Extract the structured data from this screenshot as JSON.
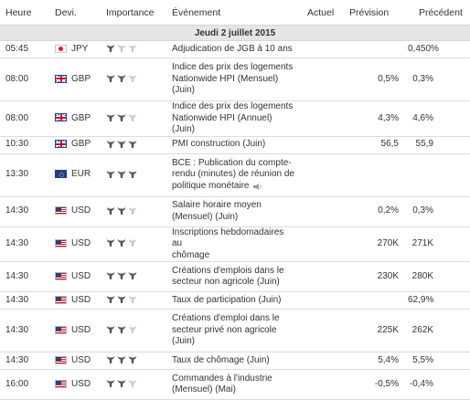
{
  "headers": {
    "time": "Heure",
    "currency": "Devi.",
    "importance": "Importance",
    "event": "Événement",
    "actual": "Actuel",
    "forecast": "Prévision",
    "previous": "Précédent"
  },
  "date_row": "Jeudi 2 juillet 2015",
  "colors": {
    "bull_full": "#555555",
    "bull_empty": "#c9c9c9",
    "date_bg": "#e6e6e6"
  },
  "events": [
    {
      "time": "05:45",
      "flag": "jpy",
      "currency": "JPY",
      "importance": 1,
      "event_lines": [
        "Adjudication de JGB à 10 ans"
      ],
      "actual": "",
      "forecast": "",
      "previous": "0,450%"
    },
    {
      "time": "08:00",
      "flag": "gbp",
      "currency": "GBP",
      "importance": 2,
      "event_lines": [
        "Indice des prix des logements",
        "Nationwide HPI (Mensuel)",
        "(Juin)"
      ],
      "actual": "",
      "forecast": "0,5%",
      "previous": "0,3%"
    },
    {
      "time": "08:00",
      "flag": "gbp",
      "currency": "GBP",
      "importance": 2,
      "event_lines": [
        "Indice des prix des logements",
        "Nationwide HPI (Annuel) (Juin)"
      ],
      "actual": "",
      "forecast": "4,3%",
      "previous": "4,6%"
    },
    {
      "time": "10:30",
      "flag": "gbp",
      "currency": "GBP",
      "importance": 3,
      "event_lines": [
        "PMI construction (Juin)"
      ],
      "actual": "",
      "forecast": "56,5",
      "previous": "55,9"
    },
    {
      "time": "13:30",
      "flag": "eur",
      "currency": "EUR",
      "importance": 3,
      "event_lines": [
        "BCE : Publication du compte-",
        "rendu (minutes) de réunion de",
        "politique monétaire"
      ],
      "speaker": true,
      "actual": "",
      "forecast": "",
      "previous": ""
    },
    {
      "time": "14:30",
      "flag": "usd",
      "currency": "USD",
      "importance": 2,
      "event_lines": [
        "Salaire horaire moyen",
        "(Mensuel) (Juin)"
      ],
      "actual": "",
      "forecast": "0,2%",
      "previous": "0,3%"
    },
    {
      "time": "14:30",
      "flag": "usd",
      "currency": "USD",
      "importance": 2,
      "event_lines": [
        "Inscriptions hebdomadaires au",
        "chômage"
      ],
      "actual": "",
      "forecast": "270K",
      "previous": "271K"
    },
    {
      "time": "14:30",
      "flag": "usd",
      "currency": "USD",
      "importance": 3,
      "event_lines": [
        "Créations d'emplois dans le",
        "secteur non agricole (Juin)"
      ],
      "actual": "",
      "forecast": "230K",
      "previous": "280K"
    },
    {
      "time": "14:30",
      "flag": "usd",
      "currency": "USD",
      "importance": 2,
      "event_lines": [
        "Taux de participation (Juin)"
      ],
      "actual": "",
      "forecast": "",
      "previous": "62,9%"
    },
    {
      "time": "14:30",
      "flag": "usd",
      "currency": "USD",
      "importance": 2,
      "event_lines": [
        "Créations d'emploi dans le",
        "secteur privé non agricole",
        "(Juin)"
      ],
      "actual": "",
      "forecast": "225K",
      "previous": "262K"
    },
    {
      "time": "14:30",
      "flag": "usd",
      "currency": "USD",
      "importance": 3,
      "event_lines": [
        "Taux de chômage (Juin)"
      ],
      "actual": "",
      "forecast": "5,4%",
      "previous": "5,5%"
    },
    {
      "time": "16:00",
      "flag": "usd",
      "currency": "USD",
      "importance": 2,
      "event_lines": [
        "Commandes à l'industrie",
        "(Mensuel) (Mai)"
      ],
      "actual": "",
      "forecast": "-0,5%",
      "previous": "-0,4%"
    }
  ]
}
